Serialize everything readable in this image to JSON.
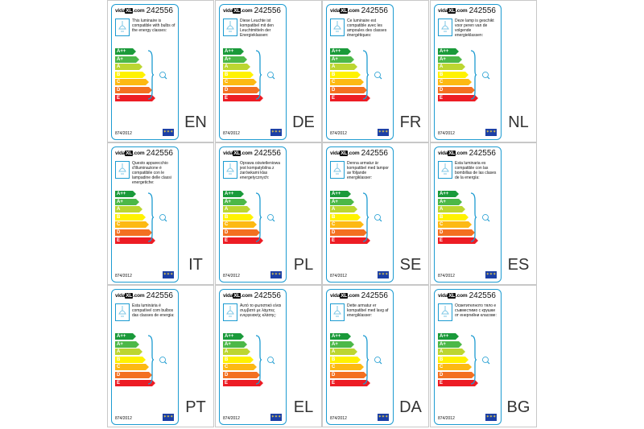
{
  "product_code": "242556",
  "brand": {
    "prefix": "vida",
    "mark": "XL",
    "suffix": ".com"
  },
  "regulation": "874/2012",
  "energy_classes": [
    {
      "label": "A++",
      "color": "#1a9a3a"
    },
    {
      "label": "A+",
      "color": "#4cb848"
    },
    {
      "label": "A",
      "color": "#bcd631"
    },
    {
      "label": "B",
      "color": "#fff200"
    },
    {
      "label": "C",
      "color": "#fdb913"
    },
    {
      "label": "D",
      "color": "#f37021"
    },
    {
      "label": "E",
      "color": "#ed1c24"
    }
  ],
  "colors": {
    "border": "#1c9bd1",
    "eu_blue": "#1b3fa6",
    "eu_star": "#ffdc3c"
  },
  "icons": [
    "lamp-icon",
    "bulb-icon",
    "eu-flag-icon"
  ],
  "labels": [
    {
      "lang": "EN",
      "text": "This luminaire is compatible with bulbs of the energy classes:"
    },
    {
      "lang": "DE",
      "text": "Diese Leuchte ist kompatibel mit den Leuchtmitteln der Energieklassen:"
    },
    {
      "lang": "FR",
      "text": "Ce luminaire est compatible avec les ampoules des classes énergétiques:"
    },
    {
      "lang": "NL",
      "text": "Deze lamp is geschikt voor peren van de volgende energieklassen:"
    },
    {
      "lang": "IT",
      "text": "Questo apparecchio d'illuminazione è compatibile con le lampadine delle classi energetiche:"
    },
    {
      "lang": "PL",
      "text": "Oprawa oświetleniowa jest kompatybilna z żarówkami klas energetycznych:"
    },
    {
      "lang": "SE",
      "text": "Denna armatur är kompatibel med lampor av följande energiklasser:"
    },
    {
      "lang": "ES",
      "text": "Esta luminaria es compatible con las bombillas de las clases de la energía:"
    },
    {
      "lang": "PT",
      "text": "Esta luminária é compatível com bulbos das classes de energia:"
    },
    {
      "lang": "EL",
      "text": "Αυτό το φωτιστικό είναι συμβατό με λάμπες ενεργειακής κλάσης:"
    },
    {
      "lang": "DA",
      "text": "Dette armatur er kompatibel med lavg af energiklasser:"
    },
    {
      "lang": "BG",
      "text": "Осветителното тяло е съвместимо с крушки от енергийни класове:"
    }
  ]
}
